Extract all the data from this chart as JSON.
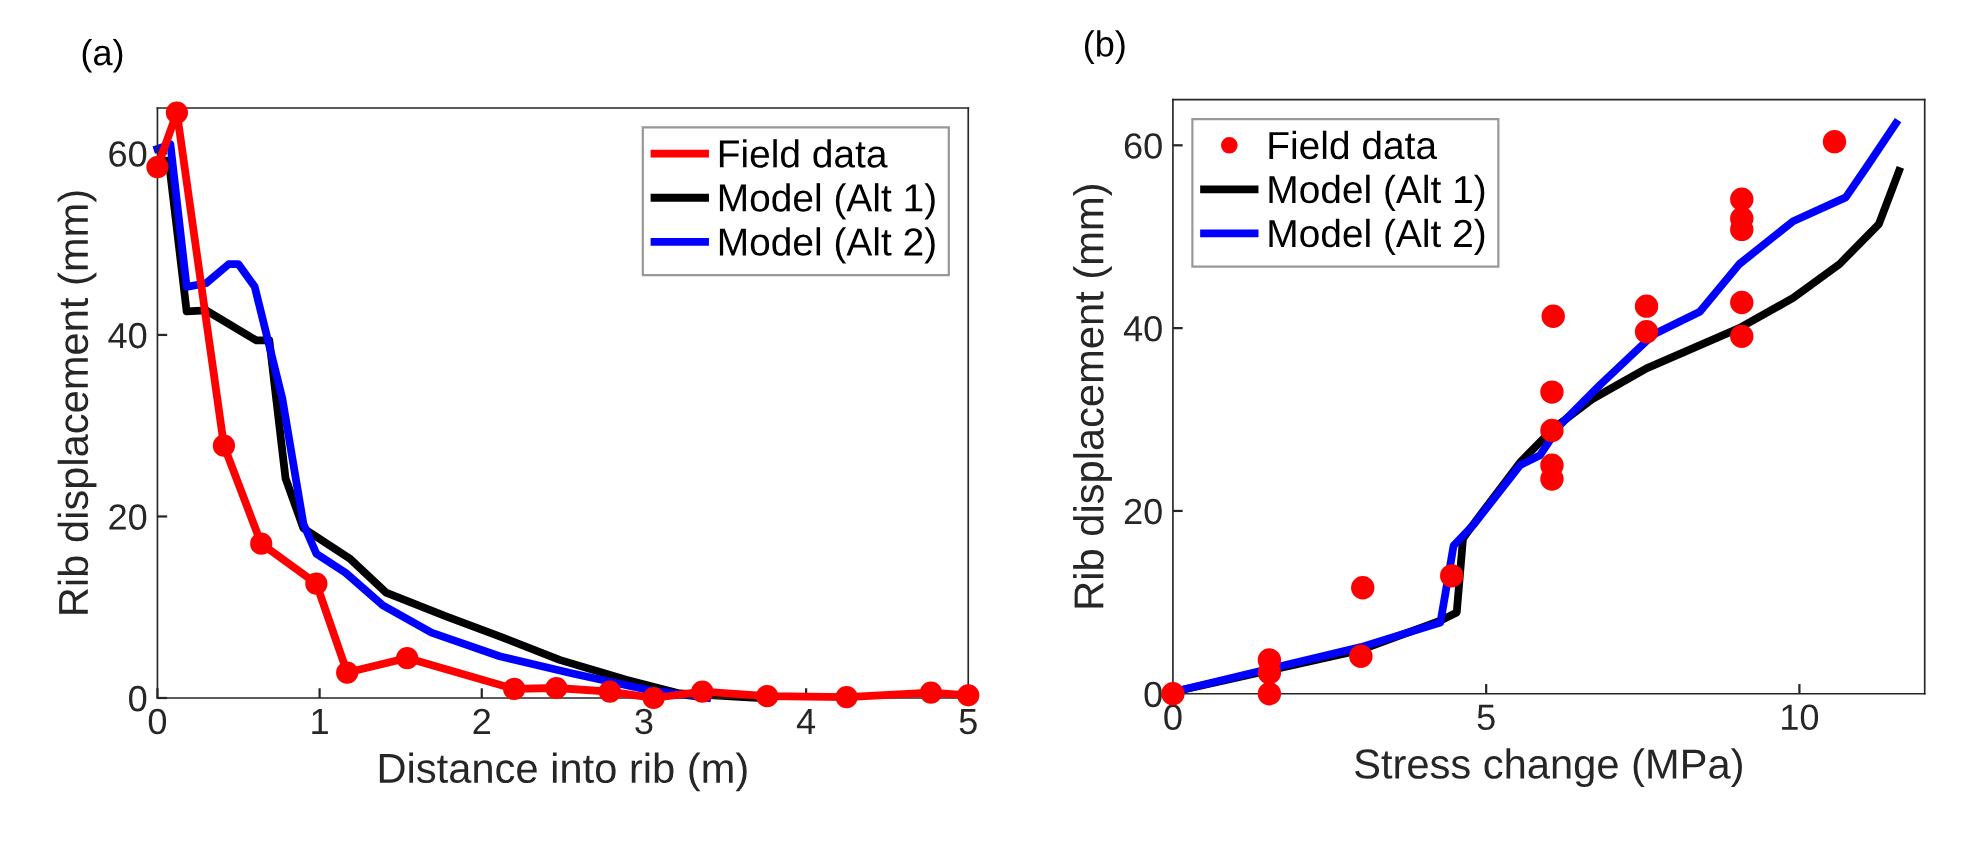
{
  "chart_data": [
    {
      "type": "line",
      "annotations": [
        "(a)"
      ],
      "xlabel": "Distance into rib (m)",
      "ylabel": "Rib displacement (mm)",
      "xlim": [
        0,
        5
      ],
      "ylim": [
        0,
        65
      ],
      "xticks": [
        0,
        1,
        2,
        3,
        4,
        5
      ],
      "yticks": [
        0,
        20,
        40,
        60
      ],
      "grid": false,
      "legend": "top right",
      "series": [
        {
          "name": "Field data",
          "color": "#ff0000",
          "marker": "circle",
          "x": [
            0,
            0.12,
            0.41,
            0.64,
            0.98,
            1.17,
            1.54,
            2.2,
            2.46,
            2.79,
            3.06,
            3.36,
            3.76,
            4.25,
            4.77,
            5
          ],
          "values": [
            58.5,
            64.5,
            27.8,
            17,
            12.6,
            2.8,
            4.4,
            1,
            1.1,
            0.7,
            0,
            0.7,
            0.2,
            0.1,
            0.6,
            0.3
          ]
        },
        {
          "name": "Model (Alt 1)",
          "color": "#000000",
          "x": [
            0,
            0.07,
            0.18,
            0.3,
            0.61,
            0.69,
            0.79,
            0.9,
            1.19,
            1.41,
            1.78,
            2.11,
            2.48,
            2.89,
            3.22,
            3.7
          ],
          "values": [
            59.2,
            59.2,
            42.6,
            42.7,
            39.4,
            39.4,
            24.2,
            18.7,
            15.3,
            11.6,
            9,
            6.8,
            4.2,
            2,
            0.5,
            0
          ]
        },
        {
          "name": "Model (Alt 2)",
          "color": "#0000ff",
          "x": [
            0,
            0.08,
            0.18,
            0.3,
            0.44,
            0.5,
            0.6,
            0.77,
            0.9,
            0.98,
            1.16,
            1.39,
            1.69,
            2.11,
            2.56,
            3.02,
            3.39
          ],
          "values": [
            60.5,
            61,
            45.3,
            45.7,
            47.8,
            47.8,
            45.3,
            33,
            19.2,
            15.9,
            13.8,
            10.2,
            7.2,
            4.6,
            2.7,
            0.9,
            0
          ]
        }
      ]
    },
    {
      "type": "line",
      "annotations": [
        "(b)"
      ],
      "xlabel": "Stress change (MPa)",
      "ylabel": "Rib displacement (mm)",
      "xlim": [
        0,
        12
      ],
      "ylim": [
        0,
        65
      ],
      "xticks": [
        0,
        5,
        10
      ],
      "yticks": [
        0,
        20,
        40,
        60
      ],
      "grid": false,
      "legend": "top left",
      "series": [
        {
          "name": "Field data",
          "type": "scatter",
          "color": "#ff0000",
          "marker": "circle",
          "x": [
            0,
            1.54,
            1.54,
            1.54,
            3.03,
            3,
            4.45,
            6.07,
            6.05,
            6.05,
            6.05,
            6.05,
            7.56,
            7.56,
            9.08,
            9.08,
            9.08,
            9.08,
            9.08,
            10.56
          ],
          "values": [
            0,
            3.7,
            2.3,
            0,
            11.6,
            4.1,
            12.9,
            41.3,
            33,
            28.8,
            25,
            23.5,
            42.4,
            39.6,
            54.1,
            52,
            50.8,
            42.8,
            39.1,
            60.4
          ]
        },
        {
          "name": "Model (Alt 1)",
          "color": "#000000",
          "x": [
            0,
            3,
            4.27,
            4.53,
            4.63,
            4.9,
            5.54,
            6.07,
            6.71,
            7.56,
            9.04,
            9.9,
            10.64,
            11.27,
            11.59
          ],
          "values": [
            0.2,
            4.8,
            8,
            8.9,
            17,
            19.5,
            25.3,
            29,
            32.3,
            35.6,
            40,
            43.3,
            47,
            51.4,
            57.2
          ]
        },
        {
          "name": "Model (Alt 2)",
          "color": "#0000ff",
          "x": [
            0,
            3,
            4.27,
            4.48,
            4.8,
            5.54,
            5.86,
            6.18,
            6.82,
            7.67,
            8.41,
            9.04,
            9.9,
            10.74,
            11.07,
            11.54
          ],
          "values": [
            0.2,
            5.1,
            7.8,
            16.2,
            18.5,
            25,
            26.1,
            29.4,
            33.8,
            39.3,
            41.8,
            47,
            51.7,
            54.3,
            57.6,
            62.4
          ]
        }
      ]
    }
  ]
}
